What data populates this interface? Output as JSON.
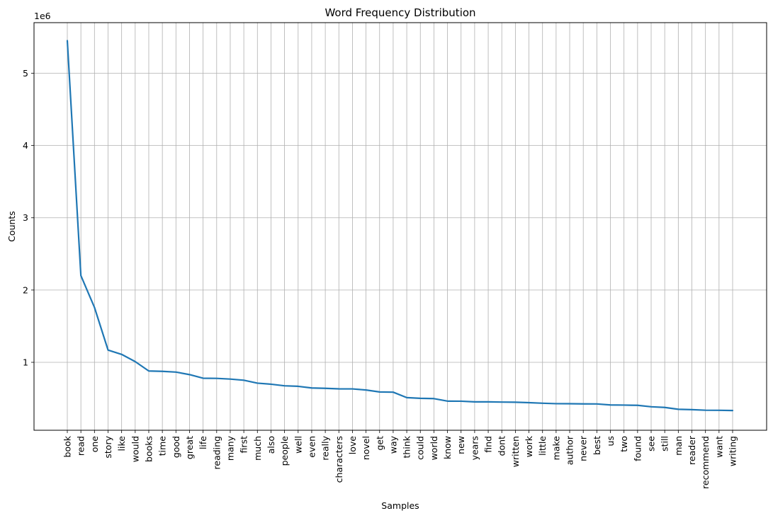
{
  "chart_data": {
    "type": "line",
    "title": "Word Frequency Distribution",
    "xlabel": "Samples",
    "ylabel": "Counts",
    "y_scale_label": "1e6",
    "y_scale": 1000000,
    "ylim": [
      60000,
      5700000
    ],
    "yticks": [
      1,
      2,
      3,
      4,
      5
    ],
    "grid": true,
    "line_color": "#1f77b4",
    "grid_color": "#b0b0b0",
    "categories": [
      "book",
      "read",
      "one",
      "story",
      "like",
      "would",
      "books",
      "time",
      "good",
      "great",
      "life",
      "reading",
      "many",
      "first",
      "much",
      "also",
      "people",
      "well",
      "even",
      "really",
      "characters",
      "love",
      "novel",
      "get",
      "way",
      "think",
      "could",
      "world",
      "know",
      "new",
      "years",
      "find",
      "dont",
      "written",
      "work",
      "little",
      "make",
      "author",
      "never",
      "best",
      "us",
      "two",
      "found",
      "see",
      "still",
      "man",
      "reader",
      "recommend",
      "want",
      "writing"
    ],
    "values": [
      5450000,
      2200000,
      1760000,
      1170000,
      1110000,
      1010000,
      880000,
      875000,
      865000,
      830000,
      780000,
      778000,
      768000,
      752000,
      712000,
      697000,
      675000,
      668000,
      645000,
      640000,
      633000,
      632000,
      617000,
      590000,
      587000,
      512000,
      502000,
      498000,
      463000,
      462000,
      453000,
      453000,
      450000,
      448000,
      442000,
      434000,
      428000,
      427000,
      425000,
      424000,
      410000,
      408000,
      405000,
      385000,
      376000,
      350000,
      345000,
      337000,
      336000,
      333000
    ]
  }
}
